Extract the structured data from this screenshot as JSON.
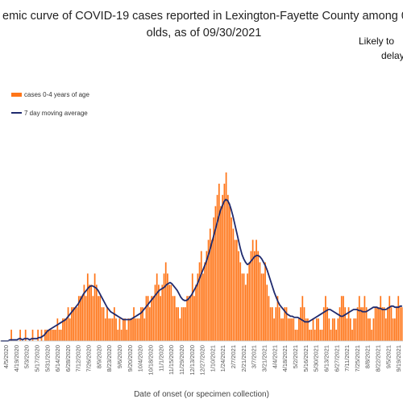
{
  "title": {
    "line1": "emic curve of COVID-19 cases reported in Lexington-Fayette County among 0-4",
    "line2": "olds, as of 09/30/2021"
  },
  "note": {
    "line1": "Likely to",
    "line2": "delay"
  },
  "chart_data": {
    "type": "bar",
    "xlabel": "Date of onset (or specimen collection)",
    "ylabel": "",
    "grid": false,
    "legend_position": "top-left",
    "x_start": "2020-02-29",
    "x_end": "2021-09-30",
    "tick_labels": [
      "4/5/2020",
      "4/19/2020",
      "5/3/2020",
      "5/17/2020",
      "5/31/2020",
      "6/14/2020",
      "6/28/2020",
      "7/12/2020",
      "7/26/2020",
      "8/9/2020",
      "8/23/2020",
      "9/6/2020",
      "9/20/2020",
      "10/4/2020",
      "10/18/2020",
      "11/1/2020",
      "11/15/2020",
      "11/29/2020",
      "12/13/2020",
      "12/27/2020",
      "1/10/2021",
      "1/24/2021",
      "2/7/2021",
      "2/21/2021",
      "3/7/2021",
      "3/21/2021",
      "4/4/2021",
      "4/18/2021",
      "5/2/2021",
      "5/16/2021",
      "5/30/2021",
      "6/13/2021",
      "6/27/2021",
      "7/11/2021",
      "7/25/2021",
      "8/8/2021",
      "8/22/2021",
      "9/5/2021",
      "9/19/2021"
    ],
    "series": [
      {
        "name": "cases 0-4 years of age",
        "kind": "bar",
        "color": "#FF7518",
        "values": [
          0,
          0,
          0,
          0,
          0,
          0,
          1,
          0,
          0,
          0,
          0,
          1,
          0,
          0,
          1,
          0,
          0,
          0,
          1,
          0,
          0,
          1,
          0,
          1,
          0,
          1,
          1,
          1,
          1,
          1,
          1,
          1,
          2,
          1,
          1,
          2,
          2,
          2,
          3,
          2,
          3,
          3,
          3,
          3,
          4,
          4,
          4,
          5,
          4,
          6,
          5,
          5,
          4,
          6,
          5,
          4,
          4,
          3,
          3,
          2,
          3,
          2,
          2,
          2,
          3,
          2,
          1,
          2,
          1,
          2,
          2,
          1,
          2,
          2,
          2,
          3,
          2,
          2,
          2,
          3,
          3,
          2,
          4,
          4,
          3,
          4,
          4,
          5,
          6,
          5,
          4,
          5,
          6,
          7,
          6,
          5,
          5,
          4,
          4,
          3,
          3,
          2,
          3,
          3,
          3,
          4,
          4,
          4,
          6,
          4,
          5,
          6,
          7,
          8,
          6,
          7,
          8,
          9,
          10,
          9,
          11,
          12,
          13,
          14,
          12,
          13,
          14,
          15,
          13,
          12,
          11,
          10,
          9,
          9,
          8,
          7,
          6,
          6,
          5,
          6,
          7,
          8,
          9,
          8,
          9,
          8,
          7,
          6,
          6,
          7,
          5,
          4,
          3,
          3,
          2,
          3,
          4,
          3,
          2,
          2,
          3,
          3,
          2,
          2,
          2,
          2,
          1,
          1,
          2,
          3,
          4,
          3,
          2,
          2,
          1,
          1,
          2,
          1,
          2,
          2,
          1,
          1,
          3,
          4,
          3,
          2,
          1,
          2,
          2,
          1,
          2,
          3,
          4,
          4,
          3,
          2,
          3,
          2,
          1,
          2,
          2,
          3,
          4,
          3,
          3,
          4,
          3,
          2,
          2,
          1,
          2,
          3,
          3,
          3,
          4,
          3,
          3,
          2,
          3,
          4,
          3,
          2,
          2,
          3,
          4,
          3,
          3
        ]
      },
      {
        "name": "7 day moving average",
        "kind": "line",
        "color": "#1F2A6E",
        "values": [
          0,
          0,
          0,
          0,
          0,
          0.1,
          0.1,
          0.1,
          0.1,
          0.1,
          0.2,
          0.2,
          0.1,
          0.2,
          0.2,
          0.2,
          0.1,
          0.2,
          0.2,
          0.2,
          0.2,
          0.3,
          0.3,
          0.4,
          0.5,
          0.7,
          0.9,
          1.0,
          1.1,
          1.2,
          1.3,
          1.4,
          1.5,
          1.6,
          1.7,
          1.8,
          1.9,
          2.1,
          2.3,
          2.5,
          2.7,
          2.9,
          3.1,
          3.3,
          3.6,
          3.9,
          4.2,
          4.4,
          4.6,
          4.8,
          4.9,
          4.9,
          4.8,
          4.7,
          4.5,
          4.2,
          3.9,
          3.6,
          3.3,
          3.0,
          2.8,
          2.6,
          2.5,
          2.4,
          2.3,
          2.2,
          2.1,
          2.0,
          1.9,
          1.9,
          1.9,
          1.9,
          1.9,
          2.0,
          2.1,
          2.2,
          2.3,
          2.4,
          2.5,
          2.7,
          2.9,
          3.1,
          3.3,
          3.5,
          3.7,
          3.9,
          4.1,
          4.3,
          4.5,
          4.6,
          4.7,
          4.8,
          5.0,
          5.1,
          5.2,
          5.1,
          4.9,
          4.7,
          4.5,
          4.2,
          3.9,
          3.7,
          3.6,
          3.6,
          3.7,
          3.9,
          4.1,
          4.4,
          4.7,
          5.0,
          5.4,
          5.8,
          6.2,
          6.6,
          7.0,
          7.5,
          8.0,
          8.6,
          9.2,
          9.8,
          10.4,
          11.0,
          11.6,
          12.0,
          12.4,
          12.6,
          12.5,
          12.2,
          11.7,
          11.1,
          10.4,
          9.7,
          9.0,
          8.3,
          7.7,
          7.3,
          7.0,
          6.8,
          6.9,
          7.1,
          7.3,
          7.5,
          7.6,
          7.6,
          7.5,
          7.3,
          7.0,
          6.7,
          6.3,
          5.8,
          5.3,
          4.8,
          4.3,
          3.9,
          3.5,
          3.2,
          3.0,
          2.8,
          2.6,
          2.4,
          2.3,
          2.2,
          2.2,
          2.1,
          2.1,
          2.1,
          2.0,
          1.9,
          1.8,
          1.7,
          1.7,
          1.7,
          1.8,
          1.9,
          2.0,
          2.1,
          2.2,
          2.3,
          2.4,
          2.5,
          2.6,
          2.7,
          2.8,
          2.8,
          2.7,
          2.6,
          2.5,
          2.4,
          2.3,
          2.2,
          2.2,
          2.3,
          2.4,
          2.5,
          2.6,
          2.7,
          2.8,
          2.8,
          2.8,
          2.7,
          2.7,
          2.6,
          2.6,
          2.6,
          2.7,
          2.8,
          2.9,
          3.0,
          3.0,
          3.0,
          2.9,
          2.9,
          2.8,
          2.8,
          2.8,
          2.9,
          3.0,
          3.1,
          3.1,
          3.0,
          3.0,
          3.0,
          3.1,
          3.1
        ]
      }
    ]
  }
}
